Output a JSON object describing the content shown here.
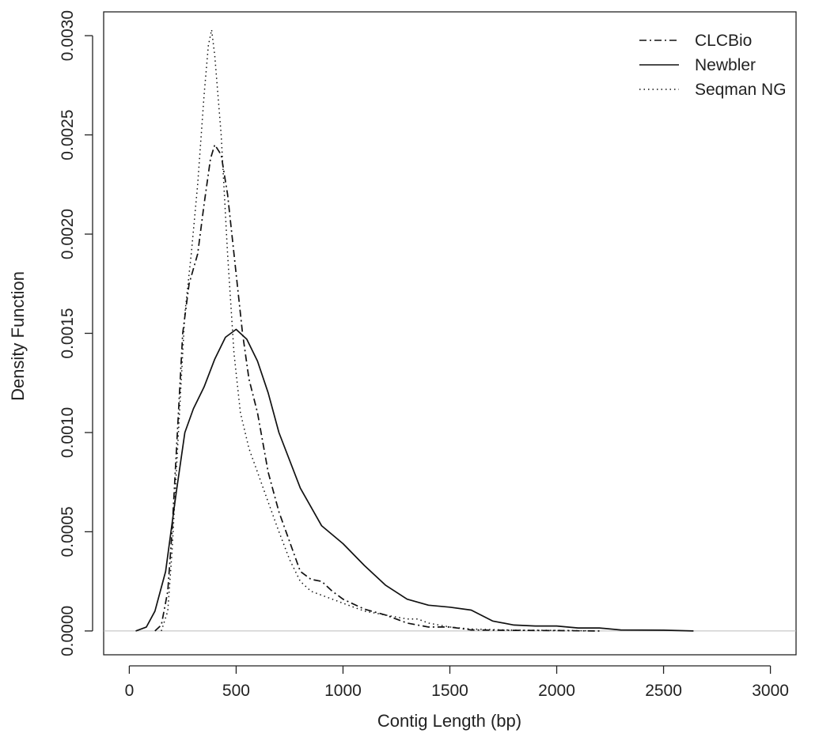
{
  "chart_data": {
    "type": "line",
    "xlabel": "Contig Length (bp)",
    "ylabel": "Density Function",
    "xlim": [
      -120,
      3120
    ],
    "ylim": [
      -0.00012,
      0.00312
    ],
    "x_ticks": [
      "0",
      "500",
      "1000",
      "1500",
      "2000",
      "2500",
      "3000"
    ],
    "y_ticks": [
      "0.0000",
      "0.0005",
      "0.0010",
      "0.0015",
      "0.0020",
      "0.0025",
      "0.0030"
    ],
    "x_tick_values": [
      0,
      500,
      1000,
      1500,
      2000,
      2500,
      3000
    ],
    "y_tick_values": [
      0,
      0.0005,
      0.001,
      0.0015,
      0.002,
      0.0025,
      0.003
    ],
    "baseline": 0,
    "grid": false,
    "legend_position": "top-right",
    "series": [
      {
        "name": "CLCBio",
        "style": "dotdash",
        "points": [
          [
            120,
            0.0
          ],
          [
            150,
            3e-05
          ],
          [
            180,
            0.0002
          ],
          [
            200,
            0.0005
          ],
          [
            220,
            0.0009
          ],
          [
            250,
            0.0015
          ],
          [
            280,
            0.00175
          ],
          [
            320,
            0.0019
          ],
          [
            350,
            0.00215
          ],
          [
            380,
            0.00238
          ],
          [
            400,
            0.00245
          ],
          [
            430,
            0.0024
          ],
          [
            460,
            0.0022
          ],
          [
            480,
            0.002
          ],
          [
            500,
            0.0018
          ],
          [
            530,
            0.0015
          ],
          [
            560,
            0.00127
          ],
          [
            600,
            0.0011
          ],
          [
            650,
            0.0008
          ],
          [
            700,
            0.0006
          ],
          [
            750,
            0.00045
          ],
          [
            800,
            0.0003
          ],
          [
            850,
            0.00026
          ],
          [
            900,
            0.00025
          ],
          [
            950,
            0.0002
          ],
          [
            1000,
            0.00016
          ],
          [
            1100,
            0.00011
          ],
          [
            1200,
            8e-05
          ],
          [
            1300,
            4e-05
          ],
          [
            1400,
            2e-05
          ],
          [
            1500,
            2e-05
          ],
          [
            1600,
            5e-06
          ],
          [
            1800,
            3e-06
          ],
          [
            2000,
            2e-06
          ],
          [
            2200,
            0.0
          ]
        ]
      },
      {
        "name": "Newbler",
        "style": "solid",
        "points": [
          [
            30,
            0.0
          ],
          [
            80,
            2e-05
          ],
          [
            120,
            0.0001
          ],
          [
            170,
            0.0003
          ],
          [
            220,
            0.0007
          ],
          [
            260,
            0.001
          ],
          [
            300,
            0.00112
          ],
          [
            350,
            0.00123
          ],
          [
            400,
            0.00137
          ],
          [
            450,
            0.00148
          ],
          [
            500,
            0.00152
          ],
          [
            550,
            0.00147
          ],
          [
            600,
            0.00136
          ],
          [
            650,
            0.0012
          ],
          [
            700,
            0.001
          ],
          [
            800,
            0.00072
          ],
          [
            900,
            0.00053
          ],
          [
            1000,
            0.00044
          ],
          [
            1100,
            0.00033
          ],
          [
            1200,
            0.00023
          ],
          [
            1300,
            0.00016
          ],
          [
            1400,
            0.00013
          ],
          [
            1500,
            0.00012
          ],
          [
            1600,
            0.000105
          ],
          [
            1700,
            5e-05
          ],
          [
            1800,
            3e-05
          ],
          [
            1900,
            2.5e-05
          ],
          [
            2000,
            2.5e-05
          ],
          [
            2100,
            1.5e-05
          ],
          [
            2200,
            1.5e-05
          ],
          [
            2300,
            5e-06
          ],
          [
            2500,
            4e-06
          ],
          [
            2640,
            0.0
          ]
        ]
      },
      {
        "name": "Seqman NG",
        "style": "dotted",
        "points": [
          [
            150,
            0.0
          ],
          [
            180,
            0.0001
          ],
          [
            200,
            0.0004
          ],
          [
            230,
            0.001
          ],
          [
            260,
            0.0016
          ],
          [
            290,
            0.0019
          ],
          [
            320,
            0.00225
          ],
          [
            350,
            0.0027
          ],
          [
            370,
            0.00295
          ],
          [
            385,
            0.00303
          ],
          [
            400,
            0.0029
          ],
          [
            430,
            0.0025
          ],
          [
            460,
            0.0019
          ],
          [
            490,
            0.0014
          ],
          [
            520,
            0.0011
          ],
          [
            560,
            0.00092
          ],
          [
            600,
            0.0008
          ],
          [
            650,
            0.00065
          ],
          [
            700,
            0.0005
          ],
          [
            750,
            0.00036
          ],
          [
            800,
            0.00025
          ],
          [
            850,
            0.0002
          ],
          [
            900,
            0.00018
          ],
          [
            950,
            0.00016
          ],
          [
            1000,
            0.00014
          ],
          [
            1100,
            0.0001
          ],
          [
            1200,
            8e-05
          ],
          [
            1300,
            6e-05
          ],
          [
            1350,
            6e-05
          ],
          [
            1400,
            4e-05
          ],
          [
            1500,
            2e-05
          ],
          [
            1600,
            1e-05
          ],
          [
            1800,
            4e-06
          ],
          [
            2000,
            3e-06
          ],
          [
            2200,
            0.0
          ]
        ]
      }
    ]
  }
}
